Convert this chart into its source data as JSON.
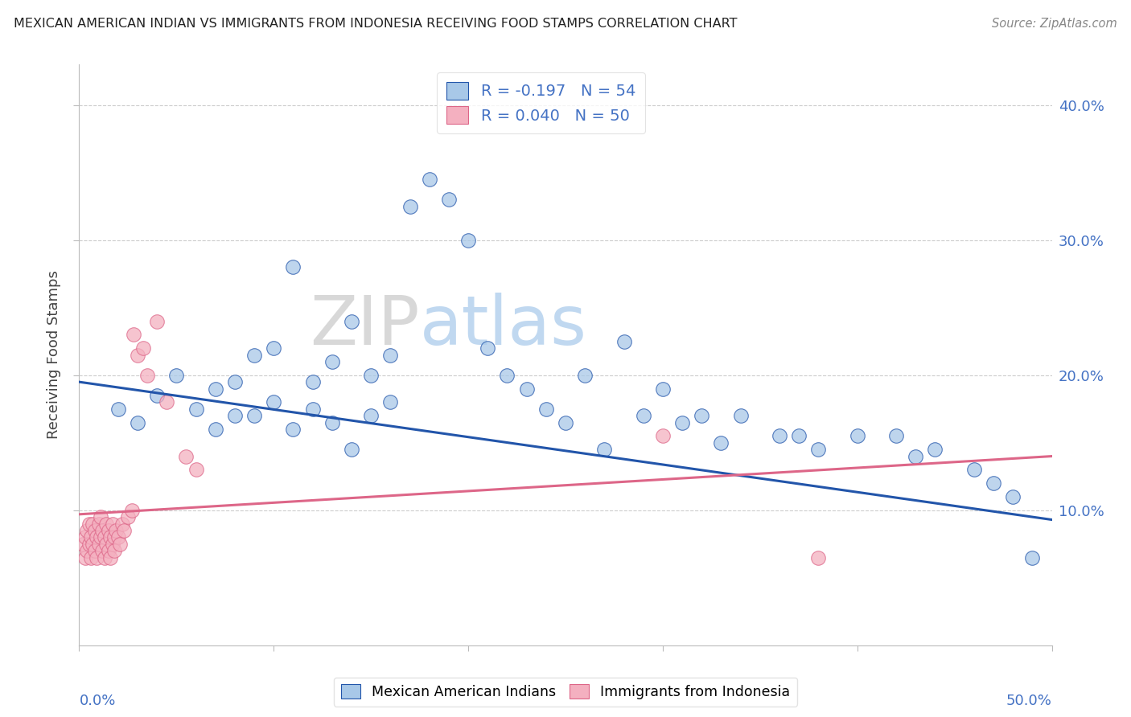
{
  "title": "MEXICAN AMERICAN INDIAN VS IMMIGRANTS FROM INDONESIA RECEIVING FOOD STAMPS CORRELATION CHART",
  "source": "Source: ZipAtlas.com",
  "ylabel": "Receiving Food Stamps",
  "color_blue": "#a8c8e8",
  "color_pink": "#f4b0c0",
  "line_blue": "#2255aa",
  "line_pink": "#dd6688",
  "watermark_zip": "ZIP",
  "watermark_atlas": "atlas",
  "blue_x": [
    0.02,
    0.03,
    0.04,
    0.05,
    0.06,
    0.07,
    0.07,
    0.08,
    0.08,
    0.09,
    0.09,
    0.1,
    0.1,
    0.11,
    0.11,
    0.12,
    0.12,
    0.13,
    0.13,
    0.14,
    0.14,
    0.15,
    0.15,
    0.16,
    0.16,
    0.17,
    0.18,
    0.19,
    0.2,
    0.21,
    0.22,
    0.23,
    0.24,
    0.25,
    0.26,
    0.27,
    0.28,
    0.29,
    0.3,
    0.31,
    0.32,
    0.33,
    0.34,
    0.36,
    0.37,
    0.38,
    0.4,
    0.42,
    0.43,
    0.44,
    0.46,
    0.47,
    0.48,
    0.49
  ],
  "blue_y": [
    0.175,
    0.165,
    0.185,
    0.2,
    0.175,
    0.19,
    0.16,
    0.17,
    0.195,
    0.215,
    0.17,
    0.22,
    0.18,
    0.28,
    0.16,
    0.195,
    0.175,
    0.21,
    0.165,
    0.24,
    0.145,
    0.2,
    0.17,
    0.215,
    0.18,
    0.325,
    0.345,
    0.33,
    0.3,
    0.22,
    0.2,
    0.19,
    0.175,
    0.165,
    0.2,
    0.145,
    0.225,
    0.17,
    0.19,
    0.165,
    0.17,
    0.15,
    0.17,
    0.155,
    0.155,
    0.145,
    0.155,
    0.155,
    0.14,
    0.145,
    0.13,
    0.12,
    0.11,
    0.065
  ],
  "pink_x": [
    0.002,
    0.003,
    0.003,
    0.004,
    0.004,
    0.005,
    0.005,
    0.006,
    0.006,
    0.007,
    0.007,
    0.008,
    0.008,
    0.009,
    0.009,
    0.01,
    0.01,
    0.011,
    0.011,
    0.012,
    0.012,
    0.013,
    0.013,
    0.014,
    0.014,
    0.015,
    0.015,
    0.016,
    0.016,
    0.017,
    0.017,
    0.018,
    0.018,
    0.019,
    0.02,
    0.021,
    0.022,
    0.023,
    0.025,
    0.027,
    0.028,
    0.03,
    0.033,
    0.035,
    0.04,
    0.045,
    0.055,
    0.06,
    0.3,
    0.38
  ],
  "pink_y": [
    0.075,
    0.08,
    0.065,
    0.085,
    0.07,
    0.075,
    0.09,
    0.08,
    0.065,
    0.075,
    0.09,
    0.085,
    0.07,
    0.08,
    0.065,
    0.09,
    0.075,
    0.095,
    0.08,
    0.07,
    0.085,
    0.08,
    0.065,
    0.09,
    0.075,
    0.085,
    0.07,
    0.08,
    0.065,
    0.09,
    0.075,
    0.08,
    0.07,
    0.085,
    0.08,
    0.075,
    0.09,
    0.085,
    0.095,
    0.1,
    0.23,
    0.215,
    0.22,
    0.2,
    0.24,
    0.18,
    0.14,
    0.13,
    0.155,
    0.065
  ],
  "blue_line_x0": 0.0,
  "blue_line_x1": 0.5,
  "blue_line_y0": 0.195,
  "blue_line_y1": 0.093,
  "pink_line_x0": 0.0,
  "pink_line_x1": 0.5,
  "pink_line_y0": 0.097,
  "pink_line_y1": 0.14,
  "xlim": [
    0.0,
    0.5
  ],
  "ylim": [
    0.0,
    0.43
  ],
  "yticks": [
    0.1,
    0.2,
    0.3,
    0.4
  ],
  "ytick_labels": [
    "10.0%",
    "20.0%",
    "30.0%",
    "40.0%"
  ]
}
